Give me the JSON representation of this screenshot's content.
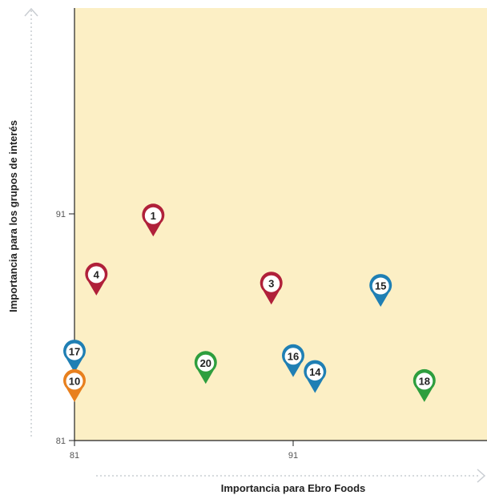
{
  "chart_data": {
    "type": "scatter",
    "xlabel": "Importancia para Ebro Foods",
    "ylabel": "Importancia para los grupos de interés",
    "x_ticks": [
      "81",
      "91"
    ],
    "y_ticks": [
      "81",
      "91"
    ],
    "xlim": [
      81,
      100
    ],
    "ylim": [
      81,
      100
    ],
    "colors": {
      "plot_background": "#fcefc5",
      "axis_arrow": "#c9cdd2",
      "red": "#b0203a",
      "blue": "#1f7fb4",
      "green": "#2e9e3e",
      "orange": "#e8801e"
    },
    "points": [
      {
        "label": "1",
        "x": 84.6,
        "y": 90.0,
        "color": "red"
      },
      {
        "label": "4",
        "x": 82.0,
        "y": 87.4,
        "color": "red"
      },
      {
        "label": "3",
        "x": 90.0,
        "y": 87.0,
        "color": "red"
      },
      {
        "label": "15",
        "x": 95.0,
        "y": 86.9,
        "color": "blue"
      },
      {
        "label": "17",
        "x": 81.0,
        "y": 84.0,
        "color": "blue"
      },
      {
        "label": "16",
        "x": 91.0,
        "y": 83.8,
        "color": "blue"
      },
      {
        "label": "14",
        "x": 92.0,
        "y": 83.1,
        "color": "blue"
      },
      {
        "label": "20",
        "x": 87.0,
        "y": 83.5,
        "color": "green"
      },
      {
        "label": "18",
        "x": 97.0,
        "y": 82.7,
        "color": "green"
      },
      {
        "label": "10",
        "x": 81.0,
        "y": 82.7,
        "color": "orange"
      }
    ]
  }
}
